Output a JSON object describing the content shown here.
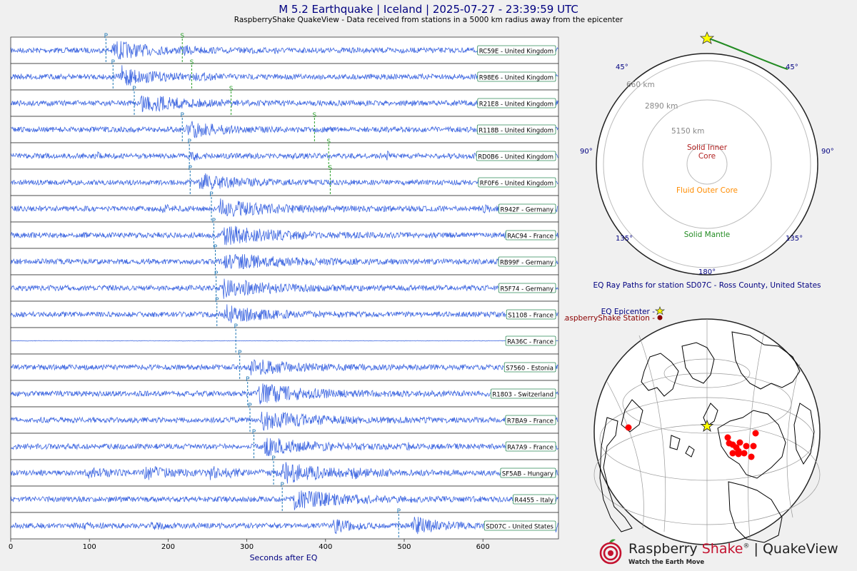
{
  "title": "M 5.2 Earthquake | Iceland | 2025-07-27 - 23:39:59 UTC",
  "subtitle": "RaspberryShake QuakeView - Data received from stations in a 5000 km radius away from the epicenter",
  "colors": {
    "trace": "#4169e1",
    "p": "#1f77b4",
    "s": "#2ca02c",
    "title": "#000080",
    "station_marker": "#ff0000",
    "epicenter": "#ffff00",
    "path": "#228b22"
  },
  "chart_data": {
    "type": "line",
    "xlabel": "Seconds after EQ",
    "xlim": [
      0,
      696
    ],
    "xticks": [
      0,
      100,
      200,
      300,
      400,
      500,
      600
    ],
    "grid": true,
    "traces": [
      {
        "label": "RC59E - United Kingdom",
        "p": 121,
        "s": 218,
        "bursts": [
          [
            130,
            3.0,
            40
          ],
          [
            220,
            0.8,
            15
          ],
          [
            305,
            0.9,
            4
          ],
          [
            335,
            1.5,
            3
          ]
        ]
      },
      {
        "label": "R98E6 - United Kingdom",
        "p": 130,
        "s": 230,
        "bursts": [
          [
            140,
            3.2,
            35
          ],
          [
            235,
            0.5,
            20
          ]
        ]
      },
      {
        "label": "R21E8 - United Kingdom",
        "p": 157,
        "s": 280,
        "bursts": [
          [
            165,
            3.0,
            45
          ]
        ]
      },
      {
        "label": "R118B - United Kingdom",
        "p": 218,
        "s": 386,
        "bursts": [
          [
            225,
            2.5,
            35
          ],
          [
            660,
            0.5,
            15
          ]
        ]
      },
      {
        "label": "RD0B6 - United Kingdom",
        "p": 227,
        "s": 404,
        "bursts": [
          [
            110,
            1.2,
            2
          ],
          [
            230,
            1.4,
            6
          ],
          [
            355,
            0.9,
            2
          ],
          [
            478,
            1.7,
            2
          ]
        ]
      },
      {
        "label": "RF0F6 - United Kingdom",
        "p": 228,
        "s": 406,
        "bursts": [
          [
            240,
            2.6,
            40
          ]
        ]
      },
      {
        "label": "R942F - Germany",
        "p": 255,
        "s": null,
        "bursts": [
          [
            190,
            0.9,
            15
          ],
          [
            265,
            2.6,
            60
          ],
          [
            600,
            0.7,
            10
          ]
        ]
      },
      {
        "label": "RAC94 - France",
        "p": 258,
        "s": null,
        "bursts": [
          [
            270,
            2.8,
            60
          ]
        ]
      },
      {
        "label": "RB99F - Germany",
        "p": 260,
        "s": null,
        "bursts": [
          [
            270,
            2.6,
            60
          ]
        ]
      },
      {
        "label": "R5F74 - Germany",
        "p": 261,
        "s": null,
        "bursts": [
          [
            270,
            2.8,
            55
          ]
        ]
      },
      {
        "label": "S1108 - France",
        "p": 262,
        "s": null,
        "bursts": [
          [
            272,
            2.6,
            50
          ]
        ]
      },
      {
        "label": "RA36C - France",
        "p": 286,
        "s": null,
        "bursts": [],
        "flat": true
      },
      {
        "label": "S7560 - Estonia",
        "p": 291,
        "s": null,
        "bursts": [
          [
            305,
            2.4,
            50
          ]
        ]
      },
      {
        "label": "R1803 - Switzerland",
        "p": 301,
        "s": null,
        "bursts": [
          [
            315,
            3.0,
            60
          ]
        ]
      },
      {
        "label": "R7BA9 - France",
        "p": 304,
        "s": null,
        "bursts": [
          [
            318,
            2.8,
            60
          ]
        ]
      },
      {
        "label": "RA7A9 - France",
        "p": 309,
        "s": null,
        "bursts": [
          [
            322,
            2.6,
            55
          ],
          [
            505,
            0.8,
            4
          ]
        ]
      },
      {
        "label": "SF5AB - Hungary",
        "p": 334,
        "s": null,
        "bursts": [
          [
            95,
            1.2,
            30
          ],
          [
            170,
            1.8,
            30
          ],
          [
            250,
            1.6,
            35
          ],
          [
            345,
            3.0,
            50
          ],
          [
            430,
            1.0,
            30
          ]
        ]
      },
      {
        "label": "R4455 - Italy",
        "p": 345,
        "s": null,
        "bursts": [
          [
            360,
            2.8,
            60
          ]
        ]
      },
      {
        "label": "SD07C - United States",
        "p": 493,
        "s": null,
        "bursts": [
          [
            90,
            0.8,
            10
          ],
          [
            180,
            1.0,
            15
          ],
          [
            410,
            2.2,
            20
          ],
          [
            510,
            2.8,
            30
          ],
          [
            690,
            2.0,
            6
          ]
        ]
      }
    ]
  },
  "ray_paths": {
    "angles": {
      "top_left": "45°",
      "top_right": "45°",
      "left": "90°",
      "right": "90°",
      "bottom_left": "135°",
      "bottom_right": "135°",
      "bottom": "180°"
    },
    "depths": {
      "d1": "660 km",
      "d2": "2890 km",
      "d3": "5150 km"
    },
    "regions": {
      "inner_line1": "Solid Inner",
      "inner_line2": "Core",
      "outer": "Fluid Outer Core",
      "mantle": "Solid Mantle"
    },
    "caption": "EQ Ray Paths for station SD07C - Ross County, United States"
  },
  "map": {
    "legend_epicenter": "EQ Epicenter -",
    "legend_station": "RaspberryShake Station -"
  },
  "brand": {
    "name_part1": "Raspberry ",
    "name_part2": "Shake",
    "reg": "®",
    "name_part3": " | QuakeView",
    "tagline": "Watch the Earth Move"
  }
}
